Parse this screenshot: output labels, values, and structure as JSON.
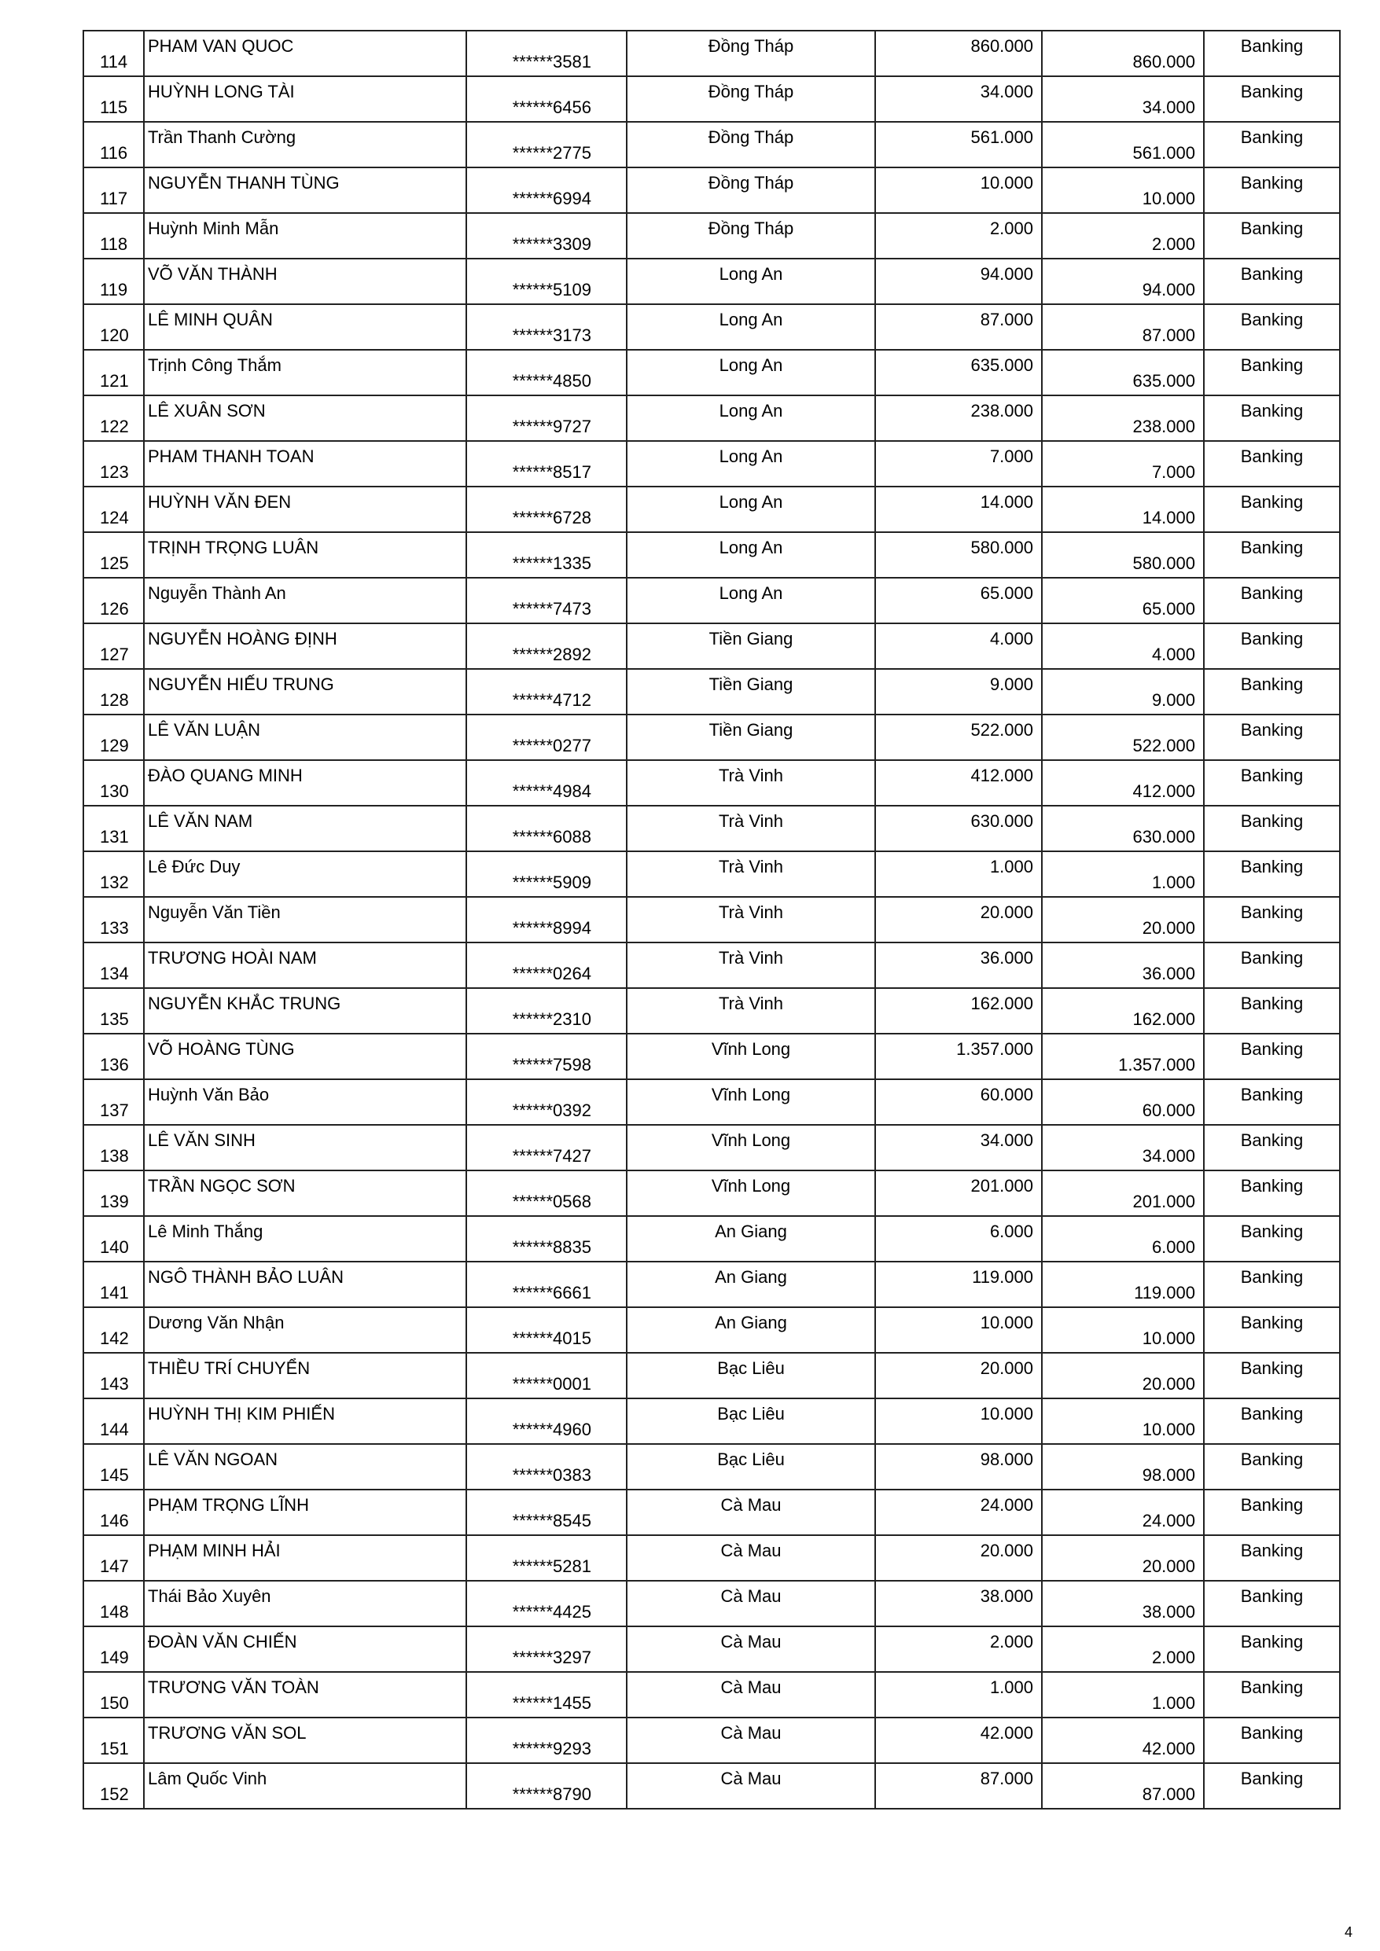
{
  "page_number": "4",
  "rows": [
    [
      "114",
      "PHAM VAN QUOC",
      "******3581",
      "Đồng Tháp",
      "860.000",
      "860.000",
      "Banking"
    ],
    [
      "115",
      "HUỲNH LONG TÀI",
      "******6456",
      "Đồng Tháp",
      "34.000",
      "34.000",
      "Banking"
    ],
    [
      "116",
      "Trần Thanh Cường",
      "******2775",
      "Đồng Tháp",
      "561.000",
      "561.000",
      "Banking"
    ],
    [
      "117",
      "NGUYỄN THANH TÙNG",
      "******6994",
      "Đồng Tháp",
      "10.000",
      "10.000",
      "Banking"
    ],
    [
      "118",
      "Huỳnh Minh Mẫn",
      "******3309",
      "Đồng Tháp",
      "2.000",
      "2.000",
      "Banking"
    ],
    [
      "119",
      "VÕ VĂN THÀNH",
      "******5109",
      "Long An",
      "94.000",
      "94.000",
      "Banking"
    ],
    [
      "120",
      "LÊ MINH QUÂN",
      "******3173",
      "Long An",
      "87.000",
      "87.000",
      "Banking"
    ],
    [
      "121",
      "Trịnh Công Thắm",
      "******4850",
      "Long An",
      "635.000",
      "635.000",
      "Banking"
    ],
    [
      "122",
      "LÊ XUÂN SƠN",
      "******9727",
      "Long An",
      "238.000",
      "238.000",
      "Banking"
    ],
    [
      "123",
      "PHAM THANH TOAN",
      "******8517",
      "Long An",
      "7.000",
      "7.000",
      "Banking"
    ],
    [
      "124",
      "HUỲNH VĂN ĐEN",
      "******6728",
      "Long An",
      "14.000",
      "14.000",
      "Banking"
    ],
    [
      "125",
      "TRỊNH TRỌNG LUÂN",
      "******1335",
      "Long An",
      "580.000",
      "580.000",
      "Banking"
    ],
    [
      "126",
      "Nguyễn Thành An",
      "******7473",
      "Long An",
      "65.000",
      "65.000",
      "Banking"
    ],
    [
      "127",
      "NGUYỄN HOÀNG ĐỊNH",
      "******2892",
      "Tiền Giang",
      "4.000",
      "4.000",
      "Banking"
    ],
    [
      "128",
      "NGUYỄN HIẾU TRUNG",
      "******4712",
      "Tiền Giang",
      "9.000",
      "9.000",
      "Banking"
    ],
    [
      "129",
      "LÊ VĂN LUẬN",
      "******0277",
      "Tiền Giang",
      "522.000",
      "522.000",
      "Banking"
    ],
    [
      "130",
      "ĐÀO QUANG MINH",
      "******4984",
      "Trà Vinh",
      "412.000",
      "412.000",
      "Banking"
    ],
    [
      "131",
      "LÊ VĂN NAM",
      "******6088",
      "Trà Vinh",
      "630.000",
      "630.000",
      "Banking"
    ],
    [
      "132",
      "Lê Đức Duy",
      "******5909",
      "Trà Vinh",
      "1.000",
      "1.000",
      "Banking"
    ],
    [
      "133",
      "Nguyễn Văn Tiền",
      "******8994",
      "Trà Vinh",
      "20.000",
      "20.000",
      "Banking"
    ],
    [
      "134",
      "TRƯƠNG HOÀI NAM",
      "******0264",
      "Trà Vinh",
      "36.000",
      "36.000",
      "Banking"
    ],
    [
      "135",
      "NGUYỄN KHẮC TRUNG",
      "******2310",
      "Trà Vinh",
      "162.000",
      "162.000",
      "Banking"
    ],
    [
      "136",
      "VÕ HOÀNG TÙNG",
      "******7598",
      "Vĩnh Long",
      "1.357.000",
      "1.357.000",
      "Banking"
    ],
    [
      "137",
      "Huỳnh Văn Bảo",
      "******0392",
      "Vĩnh Long",
      "60.000",
      "60.000",
      "Banking"
    ],
    [
      "138",
      "LÊ VĂN SINH",
      "******7427",
      "Vĩnh Long",
      "34.000",
      "34.000",
      "Banking"
    ],
    [
      "139",
      "TRẦN NGỌC SƠN",
      "******0568",
      "Vĩnh Long",
      "201.000",
      "201.000",
      "Banking"
    ],
    [
      "140",
      "Lê Minh Thắng",
      "******8835",
      "An Giang",
      "6.000",
      "6.000",
      "Banking"
    ],
    [
      "141",
      "NGÔ THÀNH BẢO LUÂN",
      "******6661",
      "An Giang",
      "119.000",
      "119.000",
      "Banking"
    ],
    [
      "142",
      "Dương Văn Nhận",
      "******4015",
      "An Giang",
      "10.000",
      "10.000",
      "Banking"
    ],
    [
      "143",
      "THIỀU TRÍ CHUYỂN",
      "******0001",
      "Bạc Liêu",
      "20.000",
      "20.000",
      "Banking"
    ],
    [
      "144",
      "HUỲNH THỊ KIM PHIẾN",
      "******4960",
      "Bạc Liêu",
      "10.000",
      "10.000",
      "Banking"
    ],
    [
      "145",
      "LÊ VĂN NGOAN",
      "******0383",
      "Bạc Liêu",
      "98.000",
      "98.000",
      "Banking"
    ],
    [
      "146",
      "PHẠM TRỌNG LĨNH",
      "******8545",
      "Cà Mau",
      "24.000",
      "24.000",
      "Banking"
    ],
    [
      "147",
      "PHẠM MINH HẢI",
      "******5281",
      "Cà Mau",
      "20.000",
      "20.000",
      "Banking"
    ],
    [
      "148",
      "Thái Bảo Xuyên",
      "******4425",
      "Cà Mau",
      "38.000",
      "38.000",
      "Banking"
    ],
    [
      "149",
      "ĐOÀN VĂN CHIẾN",
      "******3297",
      "Cà Mau",
      "2.000",
      "2.000",
      "Banking"
    ],
    [
      "150",
      "TRƯƠNG VĂN TOÀN",
      "******1455",
      "Cà Mau",
      "1.000",
      "1.000",
      "Banking"
    ],
    [
      "151",
      "TRƯƠNG VĂN SOL",
      "******9293",
      "Cà Mau",
      "42.000",
      "42.000",
      "Banking"
    ],
    [
      "152",
      "Lâm Quốc Vinh",
      "******8790",
      "Cà Mau",
      "87.000",
      "87.000",
      "Banking"
    ]
  ]
}
